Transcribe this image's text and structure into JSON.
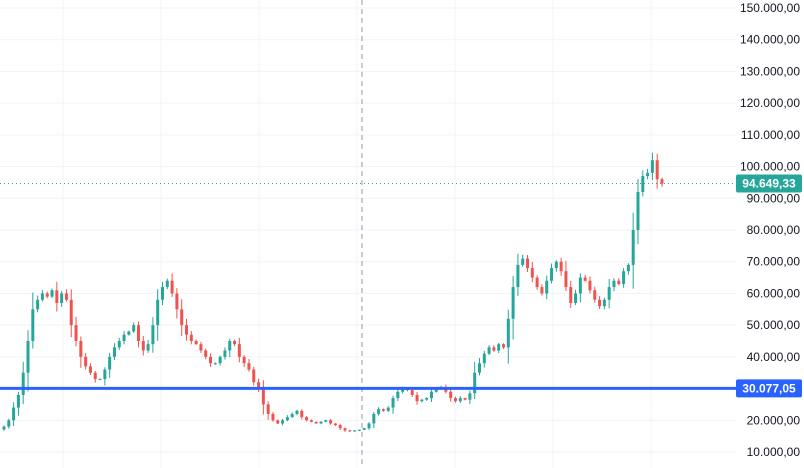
{
  "chart_data": {
    "type": "candlestick",
    "ylim": [
      7000,
      153000
    ],
    "y_ticks": [
      10000,
      20000,
      30000,
      40000,
      50000,
      60000,
      70000,
      80000,
      90000,
      100000,
      110000,
      120000,
      130000,
      140000,
      150000
    ],
    "y_tick_labels": [
      "10.000,00",
      "20.000,00",
      "30.000,00",
      "40.000,00",
      "50.000,00",
      "60.000,00",
      "70.000,00",
      "80.000,00",
      "90.000,00",
      "100.000,00",
      "110.000,00",
      "120.000,00",
      "130.000,00",
      "140.000,00",
      "150.000,00"
    ],
    "grid": true,
    "colors": {
      "up": "#26a69a",
      "down": "#ef5350",
      "grid": "#f0f3fa",
      "axis_text": "#131722"
    },
    "current_price": {
      "value": 94649.33,
      "label": "94.649,33",
      "color": "#26a69a"
    },
    "horizontal_line": {
      "value": 30077.05,
      "label": "30.077,05",
      "color": "#2962ff"
    },
    "crosshair": {
      "shown": true
    },
    "series": [
      {
        "values": [
          18000,
          20000,
          24000,
          28000,
          35000,
          45000,
          55000,
          58000,
          60000,
          59000,
          61000,
          57000,
          60000,
          58000,
          50000,
          45000,
          40000,
          37000,
          35000,
          33000,
          33000,
          36000,
          40000,
          43000,
          45000,
          47000,
          48000,
          50000,
          45000,
          42000,
          44000,
          50000,
          58000,
          62000,
          64000,
          60000,
          55000,
          50000,
          47000,
          45000,
          44000,
          42000,
          40000,
          38000,
          38000,
          40000,
          42000,
          45000,
          44000,
          40000,
          38000,
          36000,
          32000,
          30000,
          25000,
          22000,
          20000,
          19000,
          20000,
          21000,
          22000,
          23000,
          21000,
          20000,
          19500,
          19000,
          19500,
          20000,
          19000,
          18500,
          17500,
          16800,
          16500,
          16800,
          17000,
          17500,
          19000,
          22000,
          23500,
          23000,
          24000,
          27000,
          29000,
          30000,
          29500,
          28000,
          26000,
          26500,
          27000,
          29000,
          30000,
          30500,
          29000,
          27000,
          26000,
          27000,
          26500,
          28500,
          35000,
          38000,
          41000,
          43000,
          42000,
          44000,
          43000,
          52000,
          62000,
          69000,
          71000,
          68000,
          65000,
          62000,
          60000,
          64000,
          68000,
          70000,
          67000,
          62000,
          57000,
          60000,
          65000,
          64000,
          61000,
          58000,
          56000,
          58000,
          62000,
          64000,
          63000,
          67000,
          69000,
          80000,
          92000,
          97000,
          98000,
          102000,
          96000,
          94649
        ]
      }
    ]
  }
}
